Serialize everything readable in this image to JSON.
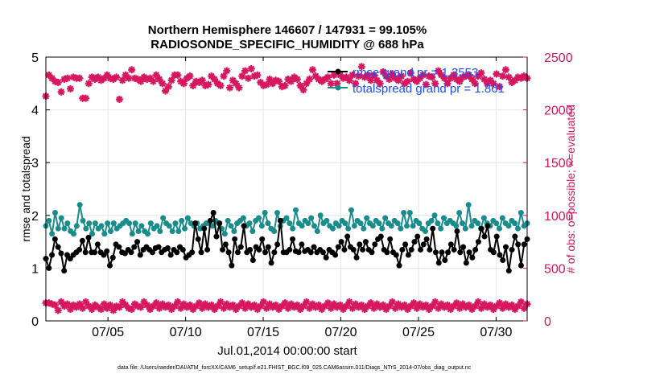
{
  "chart_data": {
    "type": "line",
    "title_line1": "Northern Hemisphere 146607 / 147931 = 99.105%",
    "title_line2": "RADIOSONDE_SPECIFIC_HUMIDITY @ 688 hPa",
    "xlabel": "Jul.01,2014 00:00:00 start",
    "ylabel_left": "rmse and totalspread",
    "ylabel_right": "# of obs: o=possible; ×=evaluated",
    "x_ticks": [
      "07/05",
      "07/10",
      "07/15",
      "07/20",
      "07/25",
      "07/30"
    ],
    "y_left_ticks": [
      "0",
      "1",
      "2",
      "3",
      "4",
      "5"
    ],
    "y_right_ticks": [
      "0",
      "500",
      "1000",
      "1500",
      "2000",
      "2500"
    ],
    "ylim_left": [
      0,
      5
    ],
    "ylim_right": [
      0,
      2500
    ],
    "xlim": [
      1,
      32
    ],
    "x_tick_values": [
      5,
      10,
      15,
      20,
      25,
      30
    ],
    "colors": {
      "rmse": "#000000",
      "spread": "#198c8c",
      "obs": "#d6175f",
      "legend_text": "#1a4cff",
      "grid": "#e6e6e6"
    },
    "series": [
      {
        "name": "rmse grand pr = 1.3553",
        "axis": "left",
        "values": [
          1.18,
          1.0,
          1.25,
          1.55,
          1.4,
          1.28,
          0.95,
          1.25,
          1.18,
          1.25,
          1.3,
          1.35,
          1.52,
          1.3,
          1.58,
          1.3,
          1.3,
          1.45,
          1.3,
          1.25,
          1.32,
          1.05,
          1.2,
          1.45,
          1.4,
          1.3,
          1.28,
          1.35,
          1.3,
          1.4,
          1.5,
          1.25,
          1.35,
          1.4,
          1.35,
          1.3,
          1.38,
          1.4,
          1.3,
          1.35,
          1.38,
          1.25,
          1.35,
          1.3,
          1.4,
          1.35,
          1.2,
          1.25,
          1.3,
          1.85,
          1.55,
          1.3,
          1.75,
          1.35,
          1.9,
          2.05,
          1.6,
          1.85,
          1.35,
          1.45,
          1.3,
          1.05,
          1.55,
          1.3,
          1.4,
          1.8,
          1.3,
          1.35,
          1.15,
          1.4,
          1.35,
          1.55,
          1.3,
          1.4,
          1.1,
          1.3,
          1.45,
          1.9,
          1.3,
          1.3,
          1.35,
          1.55,
          1.32,
          1.3,
          1.45,
          1.32,
          1.35,
          1.3,
          1.4,
          1.3,
          1.35,
          1.3,
          1.2,
          1.35,
          1.3,
          1.25,
          1.4,
          1.5,
          1.35,
          1.6,
          1.4,
          1.35,
          1.2,
          1.45,
          1.35,
          1.5,
          1.35,
          1.3,
          1.45,
          1.55,
          1.6,
          1.35,
          1.3,
          1.55,
          1.3,
          1.25,
          1.05,
          1.35,
          1.45,
          1.25,
          1.35,
          1.5,
          1.6,
          1.35,
          1.45,
          1.55,
          1.35,
          1.75,
          1.3,
          1.1,
          1.3,
          1.15,
          1.3,
          1.45,
          1.35,
          1.7,
          1.3,
          1.4,
          1.1,
          1.3,
          1.2,
          1.35,
          1.5,
          1.75,
          1.6,
          1.8,
          1.35,
          1.3,
          1.6,
          1.25,
          1.15,
          1.4,
          0.95,
          1.35,
          1.6,
          1.45,
          1.05,
          1.45,
          1.55
        ]
      },
      {
        "name": "totalspread grand pr = 1.861",
        "axis": "left",
        "values": [
          1.8,
          1.9,
          1.65,
          2.05,
          1.75,
          1.95,
          1.75,
          1.85,
          1.7,
          1.65,
          1.8,
          2.2,
          1.9,
          1.75,
          1.85,
          1.65,
          1.85,
          1.75,
          1.8,
          1.65,
          1.85,
          1.7,
          1.85,
          1.75,
          1.8,
          1.85,
          1.9,
          1.85,
          1.65,
          1.85,
          1.7,
          1.8,
          1.7,
          1.65,
          1.85,
          1.75,
          1.8,
          1.7,
          1.95,
          1.85,
          1.8,
          1.7,
          1.85,
          1.7,
          1.9,
          1.75,
          1.95,
          1.85,
          1.8,
          1.85,
          1.75,
          1.8,
          1.85,
          1.85,
          1.8,
          1.9,
          1.85,
          1.75,
          1.65,
          1.9,
          1.8,
          1.7,
          1.85,
          1.9,
          1.95,
          1.8,
          1.85,
          1.7,
          1.9,
          1.95,
          1.8,
          2.05,
          1.85,
          1.75,
          1.7,
          2.05,
          1.8,
          1.9,
          1.95,
          1.85,
          1.75,
          2.1,
          1.85,
          1.8,
          1.9,
          1.85,
          1.95,
          1.8,
          1.7,
          2.0,
          1.85,
          1.9,
          1.8,
          1.75,
          1.85,
          1.8,
          1.9,
          1.85,
          1.75,
          2.1,
          1.8,
          1.9,
          1.85,
          1.75,
          1.95,
          1.85,
          1.8,
          1.9,
          1.85,
          1.75,
          1.95,
          1.85,
          1.8,
          1.9,
          1.85,
          1.75,
          2.05,
          1.8,
          2.05,
          1.8,
          1.9,
          1.85,
          1.75,
          1.7,
          1.85,
          1.9,
          2.0,
          1.85,
          1.75,
          1.95,
          1.85,
          1.9,
          1.85,
          1.8,
          2.05,
          1.85,
          1.75,
          2.2,
          1.8,
          1.9,
          1.85,
          1.75,
          1.95,
          1.85,
          1.8,
          1.9,
          1.85,
          1.75,
          1.95,
          1.85,
          1.8,
          1.9,
          1.85,
          1.75,
          2.05,
          1.8,
          1.85
        ]
      },
      {
        "name": "possible",
        "axis": "right",
        "values": [
          2130,
          2330,
          2300,
          2270,
          2260,
          2170,
          2290,
          2300,
          2200,
          2310,
          2300,
          2300,
          2110,
          2110,
          2250,
          2310,
          2290,
          2310,
          2280,
          2300,
          2330,
          2300,
          2290,
          2310,
          2100,
          2280,
          2330,
          2300,
          2380,
          2300,
          2290,
          2270,
          2310,
          2290,
          2300,
          2270,
          2330,
          2290,
          2250,
          2180,
          2220,
          2280,
          2330,
          2330,
          2270,
          2250,
          2300,
          2320,
          2230,
          2270,
          2260,
          2280,
          2230,
          2240,
          2320,
          2290,
          2250,
          2230,
          2320,
          2370,
          2210,
          2280,
          2250,
          2210,
          2320,
          2370,
          2300,
          2390,
          2320,
          2330,
          2260,
          2230,
          2240,
          2290,
          2250,
          2280,
          2270,
          2220,
          2230,
          2290,
          2270,
          2310,
          2290,
          2230,
          2190,
          2250,
          2290,
          2380,
          2320,
          2290,
          2270,
          2290,
          2310,
          2250,
          2330,
          2250,
          2330,
          2300,
          2310,
          2280,
          2330,
          2250,
          2320,
          2410,
          2310,
          2330,
          2280,
          2330,
          2280,
          2250,
          2360,
          2320,
          2290,
          2340,
          2300,
          2280,
          2320,
          2250,
          2270,
          2350,
          2290,
          2270,
          2300,
          2330,
          2240,
          2320,
          2310,
          2250,
          2370,
          2330,
          2300,
          2250,
          2300,
          2330,
          2290,
          2270,
          2310,
          2320,
          2330,
          2290,
          2250,
          2320,
          2350,
          2290,
          2250,
          2280,
          2250,
          2340,
          2220,
          2320,
          2380,
          2310,
          2260,
          2280,
          2310,
          2300,
          2320,
          2300
        ]
      },
      {
        "name": "evaluated",
        "axis": "right",
        "values": [
          170,
          170,
          160,
          150,
          100,
          180,
          140,
          160,
          110,
          150,
          130,
          160,
          120,
          180,
          140,
          110,
          150,
          130,
          110,
          160,
          120,
          150,
          100,
          140,
          130,
          180,
          150,
          120,
          110,
          160,
          140,
          130,
          180,
          150,
          110,
          140,
          170,
          120,
          160,
          130,
          150,
          110,
          140,
          180,
          120,
          160,
          130,
          150,
          110,
          140,
          170,
          120,
          160,
          130,
          150,
          110,
          140,
          180,
          120,
          160,
          130,
          150,
          110,
          140,
          170,
          120,
          160,
          130,
          150,
          110,
          140,
          180,
          120,
          160,
          130,
          150,
          110,
          140,
          170,
          120,
          160,
          130,
          150,
          110,
          140,
          180,
          120,
          160,
          130,
          150,
          110,
          140,
          170,
          120,
          160,
          130,
          150,
          110,
          140,
          180,
          120,
          160,
          130,
          150,
          110,
          140,
          170,
          120,
          160,
          130,
          150,
          110,
          140,
          180,
          120,
          160,
          130,
          150,
          110,
          140,
          170,
          120,
          160,
          130,
          150,
          110,
          140,
          180,
          120,
          160,
          130,
          150,
          110,
          140,
          170,
          120,
          160,
          130,
          150,
          110,
          140,
          180,
          120,
          160,
          130,
          150,
          110,
          140,
          170,
          120,
          160,
          130,
          150,
          110,
          140,
          180,
          120,
          160
        ]
      }
    ]
  },
  "legend": {
    "rmse_label": "rmse grand pr = 1.3553",
    "spread_label": "totalspread grand pr = 1.861"
  },
  "footnote": "data file: /Users/raeder/DAI/ATM_forcXX/CAM6_setup/f.e21.FHIST_BGC.f09_025.CAM6assim.011/Diags_NTrS_2014-07/obs_diag_output.nc"
}
